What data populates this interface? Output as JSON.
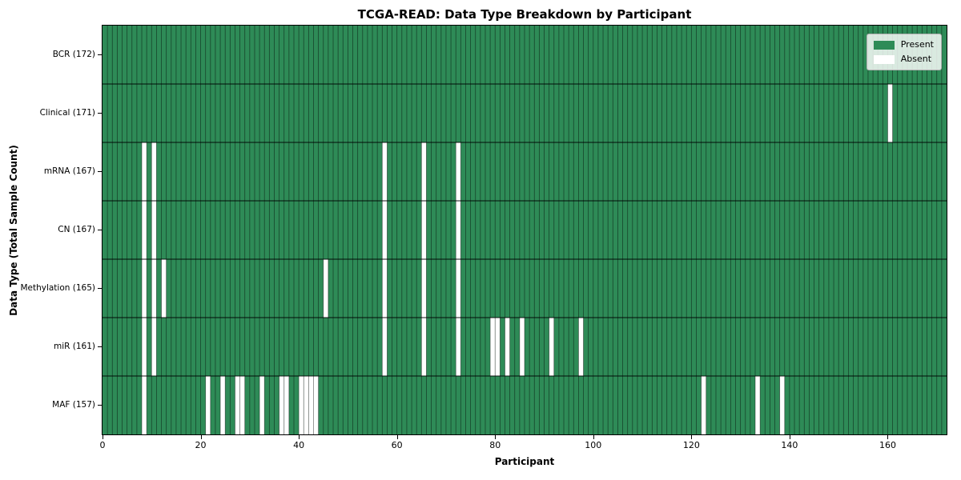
{
  "title": "TCGA-READ: Data Type Breakdown by Participant",
  "xlabel": "Participant",
  "ylabel": "Data Type (Total Sample Count)",
  "legend": {
    "items": [
      {
        "label": "Present",
        "color": "#2e8b57"
      },
      {
        "label": "Absent",
        "color": "#ffffff"
      }
    ]
  },
  "chart_data": {
    "type": "heatmap",
    "title": "TCGA-READ: Data Type Breakdown by Participant",
    "xlabel": "Participant",
    "ylabel": "Data Type (Total Sample Count)",
    "n_participants": 172,
    "xlim": [
      0,
      172
    ],
    "x_ticks": [
      0,
      20,
      40,
      60,
      80,
      100,
      120,
      140,
      160
    ],
    "grid": true,
    "legend_position": "upper right",
    "colors": {
      "present": "#2e8b57",
      "absent": "#ffffff",
      "cell_edge": "rgba(0,0,0,0.5)",
      "row_edge": "rgba(0,0,0,0.72)"
    },
    "rows": [
      {
        "label": "BCR (172)",
        "name": "BCR",
        "total": 172,
        "absent": []
      },
      {
        "label": "Clinical (171)",
        "name": "Clinical",
        "total": 171,
        "absent": [
          160
        ]
      },
      {
        "label": "mRNA (167)",
        "name": "mRNA",
        "total": 167,
        "absent": [
          8,
          10,
          57,
          65,
          72
        ]
      },
      {
        "label": "CN (167)",
        "name": "CN",
        "total": 167,
        "absent": [
          8,
          10,
          57,
          65,
          72
        ]
      },
      {
        "label": "Methylation (165)",
        "name": "Methylation",
        "total": 165,
        "absent": [
          8,
          10,
          12,
          45,
          57,
          65,
          72
        ]
      },
      {
        "label": "miR (161)",
        "name": "miR",
        "total": 161,
        "absent": [
          8,
          10,
          57,
          65,
          72,
          79,
          80,
          82,
          85,
          91,
          97
        ]
      },
      {
        "label": "MAF (157)",
        "name": "MAF",
        "total": 157,
        "absent": [
          8,
          21,
          24,
          27,
          28,
          32,
          36,
          37,
          40,
          41,
          42,
          43,
          122,
          133,
          138
        ]
      }
    ]
  }
}
